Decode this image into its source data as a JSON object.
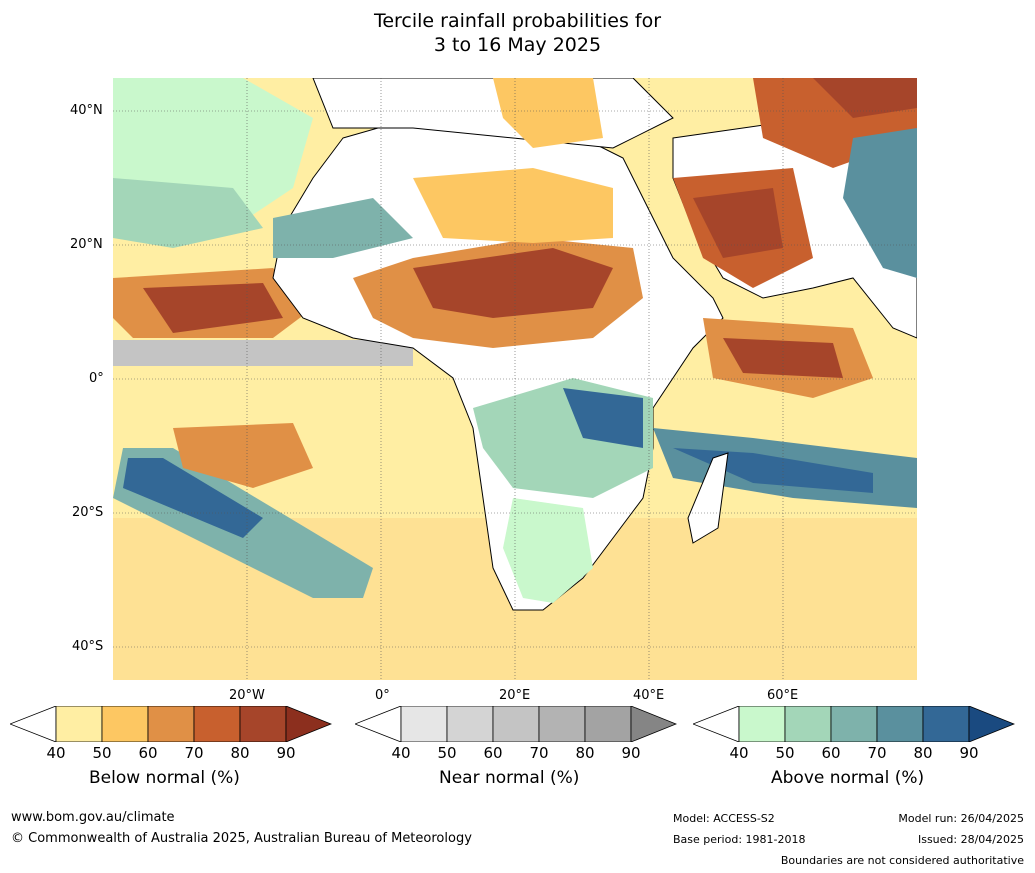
{
  "title": {
    "line1": "Tercile rainfall probabilities for",
    "line2": "3 to 16 May 2025"
  },
  "map": {
    "lat_labels": [
      "40°N",
      "20°N",
      "0°",
      "20°S",
      "40°S"
    ],
    "lon_labels": [
      "20°W",
      "0°",
      "20°E",
      "40°E",
      "60°E"
    ]
  },
  "colorbars": [
    {
      "label": "Below normal (%)",
      "ticks": [
        "40",
        "50",
        "60",
        "70",
        "80",
        "90"
      ],
      "colors": [
        "#ffffff",
        "#ffeea3",
        "#fdc762",
        "#e09046",
        "#c8602e",
        "#a6452a",
        "#8c2f1e"
      ]
    },
    {
      "label": "Near normal (%)",
      "ticks": [
        "40",
        "50",
        "60",
        "70",
        "80",
        "90"
      ],
      "colors": [
        "#ffffff",
        "#e6e6e6",
        "#d4d4d4",
        "#c4c4c4",
        "#b3b3b3",
        "#a3a3a3",
        "#858585"
      ]
    },
    {
      "label": "Above normal (%)",
      "ticks": [
        "40",
        "50",
        "60",
        "70",
        "80",
        "90"
      ],
      "colors": [
        "#ffffff",
        "#c9f8cc",
        "#a3d6b8",
        "#7eb2ab",
        "#5a909e",
        "#336896",
        "#1a4a80"
      ]
    }
  ],
  "footer": {
    "website": "www.bom.gov.au/climate",
    "copyright": "© Commonwealth of Australia 2025, Australian Bureau of Meteorology",
    "model": "Model: ACCESS-S2",
    "base_period": "Base period: 1981-2018",
    "model_run": "Model run: 26/04/2025",
    "issued": "Issued: 28/04/2025",
    "disclaimer": "Boundaries are not considered authoritative"
  }
}
